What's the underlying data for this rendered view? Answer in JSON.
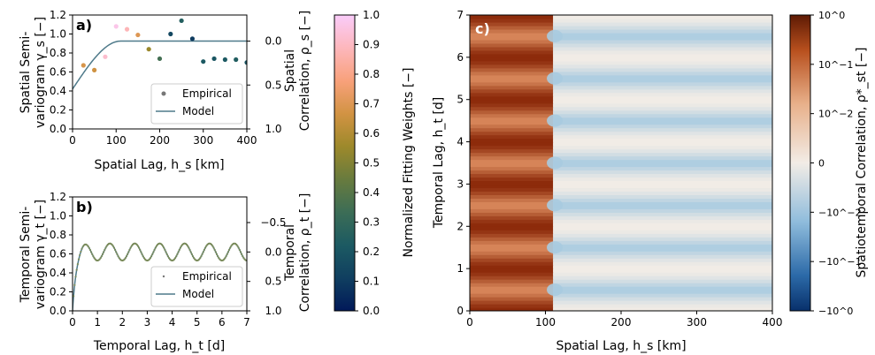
{
  "chart_data": [
    {
      "panel": "a)",
      "type": "scatter",
      "xlabel": "Spatial Lag, h_s [km]",
      "ylabel": [
        "Spatial Semi-",
        "variogram γ_s [−]"
      ],
      "ylabel2": [
        "Spatial",
        "Correlation, ρ_s [−]"
      ],
      "xlim": [
        0,
        400
      ],
      "ylim": [
        0,
        1.2
      ],
      "xticks": [
        "0",
        "100",
        "200",
        "300",
        "400"
      ],
      "yticks": [
        "0.0",
        "0.2",
        "0.4",
        "0.6",
        "0.8",
        "1.0",
        "1.2"
      ],
      "y2ticks": [
        "0.0",
        "0.5",
        "1.0"
      ],
      "y2_values": [
        0,
        0.5,
        1
      ],
      "legend": [
        "Empirical",
        "Model"
      ],
      "empirical": [
        {
          "x": 25,
          "y": 0.67,
          "w": 0.68
        },
        {
          "x": 50,
          "y": 0.62,
          "w": 0.66
        },
        {
          "x": 75,
          "y": 0.76,
          "w": 0.92
        },
        {
          "x": 100,
          "y": 1.08,
          "w": 0.97
        },
        {
          "x": 125,
          "y": 1.05,
          "w": 0.88
        },
        {
          "x": 150,
          "y": 0.99,
          "w": 0.7
        },
        {
          "x": 175,
          "y": 0.84,
          "w": 0.55
        },
        {
          "x": 200,
          "y": 0.74,
          "w": 0.35
        },
        {
          "x": 225,
          "y": 1.0,
          "w": 0.15
        },
        {
          "x": 250,
          "y": 1.14,
          "w": 0.25
        },
        {
          "x": 275,
          "y": 0.95,
          "w": 0.1
        },
        {
          "x": 300,
          "y": 0.71,
          "w": 0.22
        },
        {
          "x": 325,
          "y": 0.74,
          "w": 0.2
        },
        {
          "x": 350,
          "y": 0.73,
          "w": 0.22
        },
        {
          "x": 375,
          "y": 0.73,
          "w": 0.24
        },
        {
          "x": 400,
          "y": 0.7,
          "w": 0.2
        }
      ],
      "model": {
        "nugget": 0.42,
        "sill": 0.925,
        "range": 110
      }
    },
    {
      "panel": "b)",
      "type": "scatter",
      "xlabel": "Temporal Lag, h_t [d]",
      "ylabel": [
        "Temporal Semi-",
        "variogram γ_t [−]"
      ],
      "ylabel2": [
        "Temporal",
        "Correlation, ρ_t [−]"
      ],
      "xlim": [
        0,
        7
      ],
      "ylim": [
        0,
        1.2
      ],
      "xticks": [
        "0",
        "1",
        "2",
        "3",
        "4",
        "5",
        "6",
        "7"
      ],
      "yticks": [
        "0.0",
        "0.2",
        "0.4",
        "0.6",
        "0.8",
        "1.0",
        "1.2"
      ],
      "y2ticks": [
        "−0.5",
        "0.0",
        "0.5",
        "1.0"
      ],
      "y2_values": [
        -0.5,
        0,
        0.5,
        1
      ],
      "legend": [
        "Empirical",
        "Model"
      ],
      "model": {
        "sill": 0.62,
        "amplitude": 0.09,
        "period": 1.0,
        "rise_scale": 0.12
      }
    },
    {
      "panel": "c)",
      "type": "heatmap",
      "xlabel": "Spatial Lag, h_s [km]",
      "ylabel": "Temporal Lag, h_t [d]",
      "xlim": [
        0,
        400
      ],
      "ylim": [
        0,
        7
      ],
      "xticks": [
        "0",
        "100",
        "200",
        "300",
        "400"
      ],
      "yticks": [
        "0",
        "1",
        "2",
        "3",
        "4",
        "5",
        "6",
        "7"
      ],
      "colorbar_label": "Spatiotemporal Correlation, ρ*_st [−]",
      "colorbar_ticks": [
        "10^0",
        "10^−1",
        "10^−2",
        "0",
        "−10^−2",
        "−10^−1",
        "−10^0"
      ],
      "cutoff_km": 110,
      "peak_period_d": 1.0
    }
  ],
  "weights_colorbar": {
    "label": "Normalized Fitting Weights [−]",
    "ticks": [
      "0.0",
      "0.1",
      "0.2",
      "0.3",
      "0.4",
      "0.5",
      "0.6",
      "0.7",
      "0.8",
      "0.9",
      "1.0"
    ],
    "range": [
      0,
      1
    ]
  },
  "colors": {
    "model_line": "#4f7a8a",
    "empirical_b": "#7a8b5a",
    "batlow": [
      "#011959",
      "#103f60",
      "#1c5a62",
      "#3c6d56",
      "#687b3e",
      "#9d892b",
      "#d29343",
      "#f8a17b",
      "#fdb7bc",
      "#faccfa"
    ],
    "heat_pos_strong": "#8c2a0a",
    "heat_pos_mid": "#d9885b",
    "heat_zero": "#f2ece6",
    "heat_neg": "#a9cbe0",
    "heat_neg_strong": "#08306b"
  }
}
